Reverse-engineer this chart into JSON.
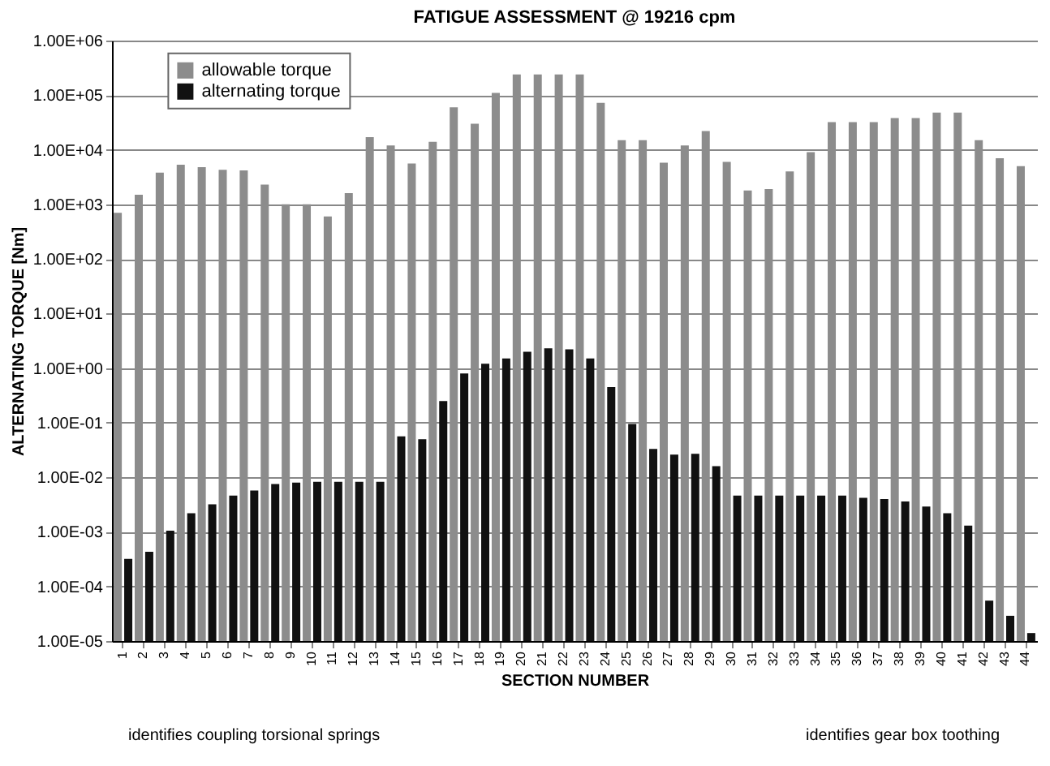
{
  "chart_data": {
    "type": "bar",
    "title": "FATIGUE ASSESSMENT @ 19216 cpm",
    "xlabel": "SECTION NUMBER",
    "ylabel": "ALTERNATING TORQUE [Nm]",
    "categories": [
      "1",
      "2",
      "3",
      "4",
      "5",
      "6",
      "7",
      "8",
      "9",
      "10",
      "11",
      "12",
      "13",
      "14",
      "15",
      "16",
      "17",
      "18",
      "19",
      "20",
      "21",
      "22",
      "23",
      "24",
      "25",
      "26",
      "27",
      "28",
      "29",
      "30",
      "31",
      "32",
      "33",
      "34",
      "35",
      "36",
      "37",
      "38",
      "39",
      "40",
      "41",
      "42",
      "43",
      "44"
    ],
    "series": [
      {
        "name": "allowable torque",
        "color": "#8c8c8c",
        "values": [
          700,
          1500,
          3800,
          5300,
          4800,
          4300,
          4200,
          2300,
          1000,
          1000,
          600,
          1600,
          17000,
          12000,
          5600,
          14000,
          60000,
          30000,
          110000,
          240000,
          240000,
          240000,
          240000,
          72000,
          15000,
          15000,
          5800,
          12000,
          22000,
          6000,
          1800,
          1900,
          4000,
          9000,
          32000,
          32000,
          32000,
          38000,
          38000,
          48000,
          48000,
          15000,
          7000,
          5000
        ]
      },
      {
        "name": "alternating torque",
        "color": "#111111",
        "values": [
          0.00032,
          0.00043,
          0.00105,
          0.0022,
          0.0032,
          0.0046,
          0.0057,
          0.0075,
          0.008,
          0.0083,
          0.0083,
          0.0083,
          0.0083,
          0.056,
          0.05,
          0.25,
          0.8,
          1.2,
          1.5,
          2.0,
          2.3,
          2.2,
          1.5,
          0.45,
          0.095,
          0.033,
          0.026,
          0.027,
          0.016,
          0.0046,
          0.0046,
          0.0046,
          0.0046,
          0.0046,
          0.0046,
          0.0042,
          0.004,
          0.0036,
          0.0029,
          0.0022,
          0.0013,
          5.5e-05,
          2.9e-05,
          1.4e-05
        ]
      }
    ],
    "log": true,
    "ylim": [
      1e-05,
      1000000
    ],
    "yticks": [
      {
        "value": 1e-05,
        "label": "1.00E-05"
      },
      {
        "value": 0.0001,
        "label": "1.00E-04"
      },
      {
        "value": 0.001,
        "label": "1.00E-03"
      },
      {
        "value": 0.01,
        "label": "1.00E-02"
      },
      {
        "value": 0.1,
        "label": "1.00E-01"
      },
      {
        "value": 1,
        "label": "1.00E+00"
      },
      {
        "value": 10,
        "label": "1.00E+01"
      },
      {
        "value": 100,
        "label": "1.00E+02"
      },
      {
        "value": 1000,
        "label": "1.00E+03"
      },
      {
        "value": 10000,
        "label": "1.00E+04"
      },
      {
        "value": 100000,
        "label": "1.00E+05"
      },
      {
        "value": 1000000,
        "label": "1.00E+06"
      }
    ],
    "grid": "y",
    "legend": "top left",
    "annotations": [
      "identifies coupling torsional springs",
      "identifies gear box toothing"
    ]
  }
}
